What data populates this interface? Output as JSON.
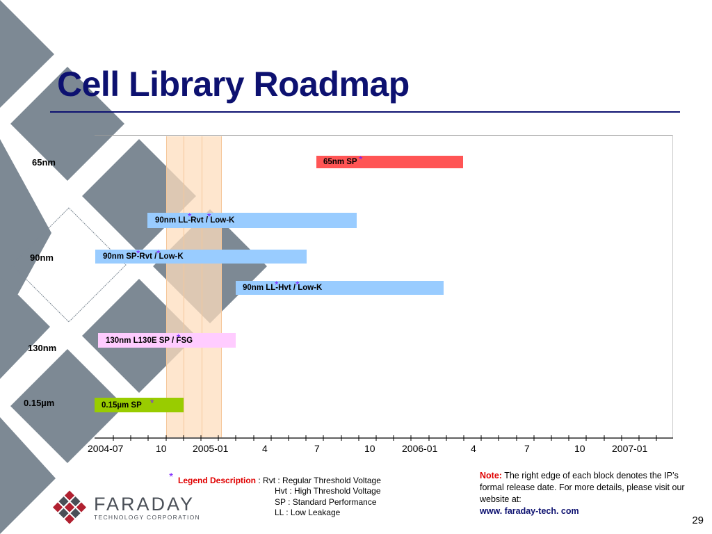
{
  "slide": {
    "title": "Cell Library Roadmap",
    "page_number": "29"
  },
  "rows": {
    "r65": "65nm",
    "r90": "90nm",
    "r130": "130nm",
    "r015": "0.15µm"
  },
  "bars": [
    {
      "label": "65nm SP",
      "color": "#ff5555"
    },
    {
      "label": "90nm LL-Rvt / Low-K",
      "color": "#99ccff"
    },
    {
      "label": "90nm SP-Rvt / Low-K",
      "color": "#99ccff"
    },
    {
      "label": "90nm LL-Hvt / Low-K",
      "color": "#99ccff"
    },
    {
      "label": "130nm L130E SP / FSG",
      "color": "#ffccff"
    },
    {
      "label": "0.15µm SP",
      "color": "#99cc00"
    }
  ],
  "asterisk": "*",
  "axis_ticks": [
    "2004-07",
    "10",
    "2005-01",
    "4",
    "7",
    "10",
    "2006-01",
    "4",
    "7",
    "10",
    "2007-01"
  ],
  "legend": {
    "star": "*",
    "title": "Legend Description",
    "colon": " : ",
    "items": [
      "Rvt :   Regular Threshold Voltage",
      "Hvt :  High Threshold Voltage",
      "SP  :  Standard Performance",
      "LL  :  Low Leakage"
    ]
  },
  "note": {
    "label": "Note:",
    "text": " The right edge of each block denotes the IP’s formal release date.  For more details, please visit our website at:",
    "url": "www. faraday-tech. com"
  },
  "logo": {
    "name": "FARADAY",
    "subtitle": "TECHNOLOGY CORPORATION"
  },
  "colors": {
    "title": "#0d1170",
    "diamond": "#7d8994",
    "highlight": "#fde3c8",
    "accent_red": "#e00000",
    "asterisk": "#7a1fff"
  }
}
